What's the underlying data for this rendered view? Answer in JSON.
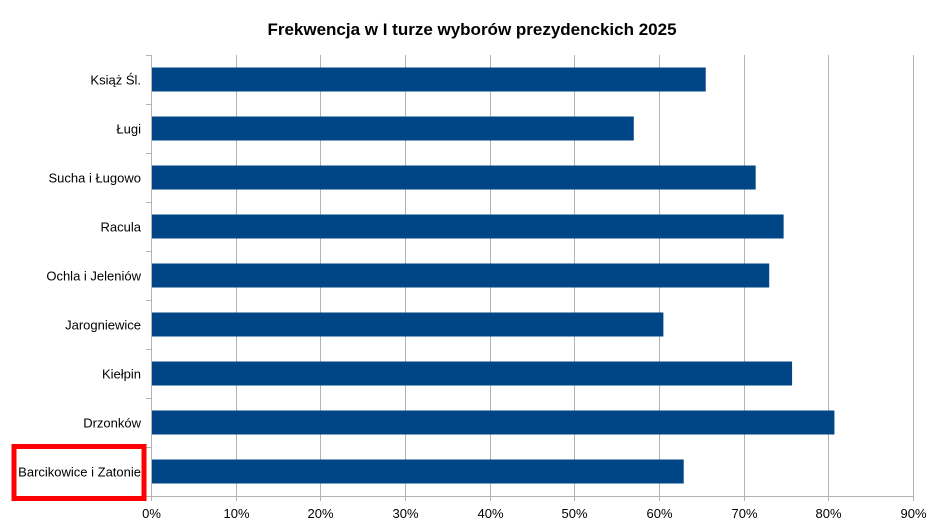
{
  "chart_data": {
    "type": "bar",
    "orientation": "horizontal",
    "title": "Frekwencja w I turze wyborów prezydenckich 2025",
    "categories": [
      "Książ Śl.",
      "Ługi",
      "Sucha i Ługowo",
      "Racula",
      "Ochla i Jeleniów",
      "Jarogniewice",
      "Kiełpin",
      "Drzonków",
      "Barcikowice i Zatonie"
    ],
    "values": [
      65.4,
      56.9,
      71.3,
      74.6,
      72.9,
      60.4,
      75.6,
      80.6,
      62.8
    ],
    "xlim": [
      0,
      90
    ],
    "x_ticks": [
      "0%",
      "10%",
      "20%",
      "30%",
      "40%",
      "50%",
      "60%",
      "70%",
      "80%",
      "90%"
    ],
    "xlabel": "",
    "ylabel": "",
    "grid": true,
    "bar_color": "#004586",
    "highlight_category": "Barcikowice i Zatonie",
    "highlight_color": "#ff0000"
  }
}
